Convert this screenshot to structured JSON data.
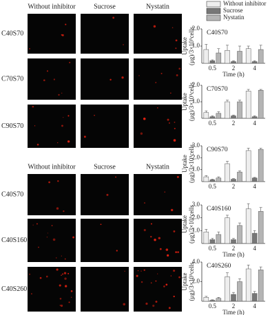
{
  "micrographs": {
    "groups": [
      {
        "headers": [
          "Without inhibitor",
          "Sucrose",
          "Nystatin"
        ],
        "rows": [
          "C40S70",
          "C70S70",
          "C90S70"
        ]
      },
      {
        "headers": [
          "Without inhibitor",
          "Sucrose",
          "Nystatin"
        ],
        "rows": [
          "C40S70",
          "C40S160",
          "C40S260"
        ]
      }
    ]
  },
  "chart_data": [
    {
      "type": "bar",
      "title": "C40S70",
      "y_label": [
        "Uptake",
        "(μg)/3×10⁵cells"
      ],
      "x_label": "Time (h)",
      "categories": [
        "0.5",
        "2",
        "4"
      ],
      "ylim": [
        0,
        2
      ],
      "yticks": [
        {
          "value": 1,
          "label": "1.0"
        },
        {
          "value": 2,
          "label": "2.0"
        }
      ],
      "series": [
        {
          "name": "Without inhibitor",
          "color": "#eeeeee",
          "values": [
            0.8,
            0.75,
            0.85
          ],
          "errors": [
            0.3,
            0.3,
            0.15
          ]
        },
        {
          "name": "Sucrose",
          "color": "#777777",
          "values": [
            0.15,
            0.1,
            0.1
          ],
          "errors": [
            0.05,
            0.05,
            0.05
          ]
        },
        {
          "name": "Nystatin",
          "color": "#b5b5b5",
          "values": [
            0.6,
            0.7,
            0.8
          ],
          "errors": [
            0.25,
            0.3,
            0.25
          ]
        }
      ]
    },
    {
      "type": "bar",
      "title": "C70S70",
      "y_label": [
        "Uptake",
        "(μg)/3×10⁵cells"
      ],
      "categories": [
        "0.5",
        "2",
        "4"
      ],
      "ylim": [
        0,
        2
      ],
      "yticks": [
        {
          "value": 1,
          "label": "1.0"
        },
        {
          "value": 2,
          "label": "2.0"
        }
      ],
      "series": [
        {
          "color": "#eeeeee",
          "values": [
            0.35,
            1.0,
            1.65
          ],
          "errors": [
            0.1,
            0.1,
            0.1
          ]
        },
        {
          "color": "#777777",
          "values": [
            0.1,
            0.15,
            0.1
          ],
          "errors": [
            0.05,
            0.05,
            0.05
          ]
        },
        {
          "color": "#b5b5b5",
          "values": [
            0.3,
            1.0,
            1.7
          ],
          "errors": [
            0.1,
            0.1,
            0.05
          ]
        }
      ]
    },
    {
      "type": "bar",
      "title": "C90S70",
      "y_label": [
        "Uptake",
        "(μg)/3×10⁵cells"
      ],
      "categories": [
        "0.5",
        "2",
        "4"
      ],
      "ylim": [
        0,
        3
      ],
      "yticks": [
        {
          "value": 1,
          "label": "1.0"
        },
        {
          "value": 2,
          "label": "2.0"
        },
        {
          "value": 3,
          "label": "3.0"
        }
      ],
      "series": [
        {
          "color": "#eeeeee",
          "values": [
            0.4,
            1.5,
            2.6
          ],
          "errors": [
            0.1,
            0.2,
            0.2
          ]
        },
        {
          "color": "#777777",
          "values": [
            0.15,
            0.2,
            0.3
          ],
          "errors": [
            0.05,
            0.05,
            0.05
          ]
        },
        {
          "color": "#b5b5b5",
          "values": [
            0.3,
            0.8,
            2.7
          ],
          "errors": [
            0.1,
            0.1,
            0.1
          ]
        }
      ]
    },
    {
      "type": "bar",
      "title": "C40S160",
      "y_label": [
        "Uptake",
        "(μg)/3×10⁵cells"
      ],
      "x_label": "Time (h)",
      "categories": [
        "0.5",
        "2",
        "4"
      ],
      "ylim": [
        0,
        3
      ],
      "yticks": [
        {
          "value": 1,
          "label": "1.0"
        },
        {
          "value": 2,
          "label": "2.0"
        },
        {
          "value": 3,
          "label": "3.0"
        }
      ],
      "series": [
        {
          "color": "#eeeeee",
          "values": [
            0.9,
            2.0,
            2.7
          ],
          "errors": [
            0.2,
            0.2,
            0.4
          ]
        },
        {
          "color": "#777777",
          "values": [
            0.3,
            0.3,
            0.8
          ],
          "errors": [
            0.1,
            0.1,
            0.2
          ]
        },
        {
          "color": "#b5b5b5",
          "values": [
            0.7,
            1.4,
            2.5
          ],
          "errors": [
            0.2,
            0.2,
            0.3
          ]
        }
      ]
    },
    {
      "type": "bar",
      "title": "C40S260",
      "y_label": [
        "Uptake",
        "(μg)/3×10⁵cells"
      ],
      "x_label": "Time (h)",
      "categories": [
        "0.5",
        "2",
        "4"
      ],
      "ylim": [
        0,
        4
      ],
      "yticks": [
        {
          "value": 2,
          "label": "2.0"
        },
        {
          "value": 4,
          "label": "4.0"
        }
      ],
      "series": [
        {
          "color": "#eeeeee",
          "values": [
            0.4,
            2.5,
            3.3
          ],
          "errors": [
            0.1,
            0.4,
            0.4
          ]
        },
        {
          "color": "#777777",
          "values": [
            0.1,
            0.7,
            0.8
          ],
          "errors": [
            0.05,
            0.2,
            0.2
          ]
        },
        {
          "color": "#b5b5b5",
          "values": [
            0.3,
            2.0,
            3.2
          ],
          "errors": [
            0.1,
            0.3,
            0.3
          ]
        }
      ]
    }
  ]
}
